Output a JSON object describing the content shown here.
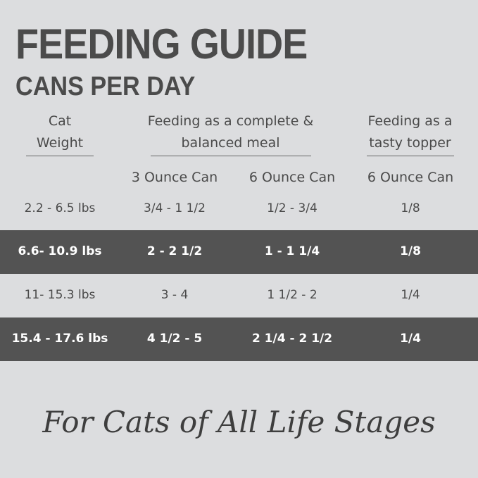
{
  "header": {
    "title": "FEEDING GUIDE",
    "subtitle": "CANS PER DAY"
  },
  "table": {
    "col_headers": [
      [
        "Cat",
        "Weight"
      ],
      [
        "Feeding as a complete &",
        "balanced meal"
      ],
      [
        "Feeding as a",
        "tasty topper"
      ]
    ],
    "sub_headers": [
      "3 Ounce Can",
      "6 Ounce Can",
      "6 Ounce Can"
    ],
    "rows": [
      [
        "2.2 - 6.5 lbs",
        "3/4 - 1 1/2",
        "1/2 - 3/4",
        "1/8"
      ],
      [
        "6.6- 10.9 lbs",
        "2 - 2 1/2",
        "1 - 1 1/4",
        "1/8"
      ],
      [
        "11- 15.3 lbs",
        "3 - 4",
        "1 1/2 - 2",
        "1/4"
      ],
      [
        "15.4 - 17.6 lbs",
        "4 1/2 - 5",
        "2 1/4 - 2 1/2",
        "1/4"
      ]
    ]
  },
  "footer": {
    "tagline": "For Cats of All Life Stages"
  }
}
